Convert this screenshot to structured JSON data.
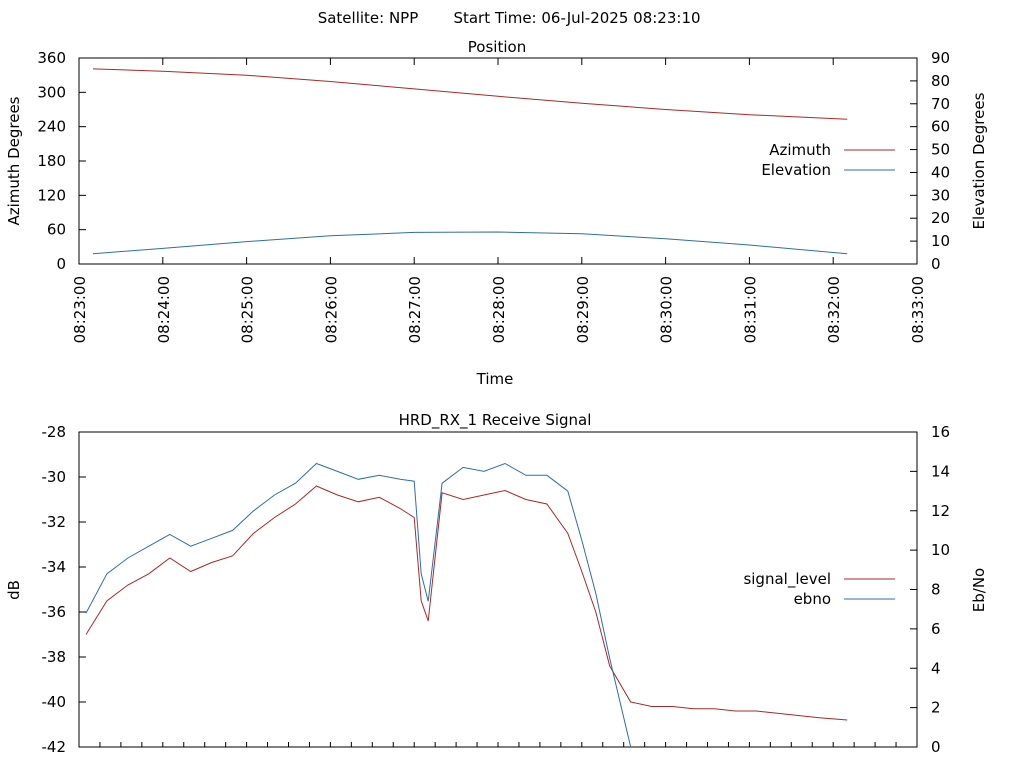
{
  "header": {
    "satellite": "Satellite: NPP",
    "start_time": "Start Time: 06-Jul-2025 08:23:10"
  },
  "chart_data": [
    {
      "type": "line",
      "title": "Position",
      "xlabel": "Time",
      "ylabel": "Azimuth Degrees",
      "y2label": "Elevation Degrees",
      "ylim": [
        0,
        360
      ],
      "y2lim": [
        0,
        90
      ],
      "yticks": [
        "0",
        "60",
        "120",
        "180",
        "240",
        "300",
        "360"
      ],
      "y2ticks": [
        "0",
        "10",
        "20",
        "30",
        "40",
        "50",
        "60",
        "70",
        "80",
        "90"
      ],
      "xlim": [
        "08:23:00",
        "08:33:00"
      ],
      "xticks": [
        "08:23:00",
        "08:24:00",
        "08:25:00",
        "08:26:00",
        "08:27:00",
        "08:28:00",
        "08:29:00",
        "08:30:00",
        "08:31:00",
        "08:32:00",
        "08:33:00"
      ],
      "grid": false,
      "legend": "right",
      "series": [
        {
          "name": "Azimuth",
          "axis": "left",
          "color": "#a52a2a",
          "x": [
            "08:23:10",
            "08:24:00",
            "08:25:00",
            "08:26:00",
            "08:27:00",
            "08:28:00",
            "08:29:00",
            "08:30:00",
            "08:31:00",
            "08:32:10"
          ],
          "y": [
            341,
            337,
            330,
            319,
            306,
            293,
            281,
            270,
            261,
            253
          ]
        },
        {
          "name": "Elevation",
          "axis": "right",
          "color": "#2e6fa0",
          "x": [
            "08:23:10",
            "08:24:00",
            "08:25:00",
            "08:26:00",
            "08:27:00",
            "08:28:00",
            "08:29:00",
            "08:30:00",
            "08:31:00",
            "08:32:10"
          ],
          "y": [
            4.5,
            6.8,
            9.8,
            12.3,
            13.8,
            14.0,
            13.2,
            11.0,
            8.3,
            4.5
          ]
        }
      ]
    },
    {
      "type": "line",
      "title": "HRD_RX_1 Receive Signal",
      "xlabel": "",
      "ylabel": "dB",
      "y2label": "Eb/No",
      "ylim": [
        -42,
        -28
      ],
      "y2lim": [
        0,
        16
      ],
      "yticks": [
        "-42",
        "-40",
        "-38",
        "-36",
        "-34",
        "-32",
        "-30",
        "-28"
      ],
      "y2ticks": [
        "0",
        "2",
        "4",
        "6",
        "8",
        "10",
        "12",
        "14",
        "16"
      ],
      "xlim": [
        "08:23:00",
        "08:33:00"
      ],
      "grid": false,
      "legend": "right",
      "series": [
        {
          "name": "signal_level",
          "axis": "left",
          "color": "#a52a2a",
          "x": [
            "08:23:05",
            "08:23:20",
            "08:23:35",
            "08:23:50",
            "08:24:05",
            "08:24:20",
            "08:24:35",
            "08:24:50",
            "08:25:05",
            "08:25:20",
            "08:25:35",
            "08:25:50",
            "08:26:05",
            "08:26:20",
            "08:26:35",
            "08:26:50",
            "08:27:00",
            "08:27:05",
            "08:27:10",
            "08:27:20",
            "08:27:35",
            "08:27:50",
            "08:28:05",
            "08:28:20",
            "08:28:35",
            "08:28:50",
            "08:29:00",
            "08:29:10",
            "08:29:20",
            "08:29:35",
            "08:29:50",
            "08:30:05",
            "08:30:20",
            "08:30:35",
            "08:30:50",
            "08:31:05",
            "08:31:20",
            "08:31:35",
            "08:31:50",
            "08:32:10"
          ],
          "y": [
            -37.0,
            -35.5,
            -34.8,
            -34.3,
            -33.6,
            -34.2,
            -33.8,
            -33.5,
            -32.5,
            -31.8,
            -31.2,
            -30.4,
            -30.8,
            -31.1,
            -30.9,
            -31.4,
            -31.8,
            -35.5,
            -36.4,
            -30.7,
            -31.0,
            -30.8,
            -30.6,
            -31.0,
            -31.2,
            -32.5,
            -34.2,
            -36.0,
            -38.4,
            -40.0,
            -40.2,
            -40.2,
            -40.3,
            -40.3,
            -40.4,
            -40.4,
            -40.5,
            -40.6,
            -40.7,
            -40.8
          ]
        },
        {
          "name": "ebno",
          "axis": "right",
          "color": "#2e6fa0",
          "x": [
            "08:23:05",
            "08:23:20",
            "08:23:35",
            "08:23:50",
            "08:24:05",
            "08:24:20",
            "08:24:35",
            "08:24:50",
            "08:25:05",
            "08:25:20",
            "08:25:35",
            "08:25:50",
            "08:26:05",
            "08:26:20",
            "08:26:35",
            "08:26:50",
            "08:27:00",
            "08:27:05",
            "08:27:10",
            "08:27:20",
            "08:27:35",
            "08:27:50",
            "08:28:05",
            "08:28:20",
            "08:28:35",
            "08:28:50",
            "08:29:00",
            "08:29:10",
            "08:29:20",
            "08:29:35"
          ],
          "y": [
            6.8,
            8.8,
            9.6,
            10.2,
            10.8,
            10.2,
            10.6,
            11.0,
            12.0,
            12.8,
            13.4,
            14.4,
            14.0,
            13.6,
            13.8,
            13.6,
            13.5,
            8.8,
            7.4,
            13.4,
            14.2,
            14.0,
            14.4,
            13.8,
            13.8,
            13.0,
            10.5,
            7.8,
            4.5,
            0.0
          ]
        }
      ]
    }
  ]
}
